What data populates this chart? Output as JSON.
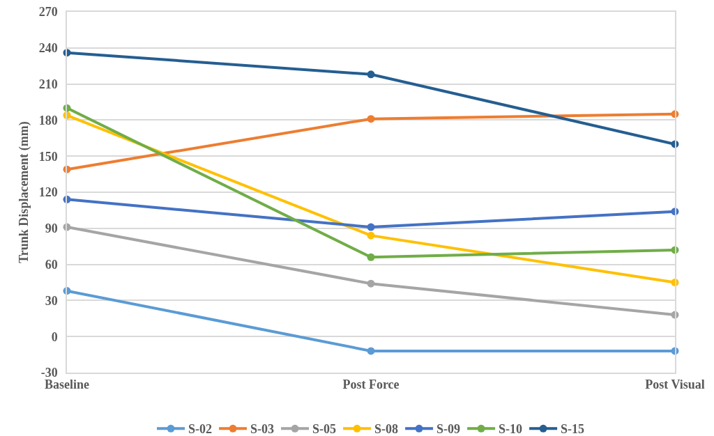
{
  "chart_data": {
    "type": "line",
    "ylabel": "Trunk Displacement (mm)",
    "categories": [
      "Baseline",
      "Post Force",
      "Post Visual"
    ],
    "series": [
      {
        "name": "S-02",
        "color": "#5b9bd5",
        "values": [
          38,
          -12,
          -12
        ]
      },
      {
        "name": "S-03",
        "color": "#ed7d31",
        "values": [
          139,
          181,
          185
        ]
      },
      {
        "name": "S-05",
        "color": "#a5a5a5",
        "values": [
          91,
          44,
          18
        ]
      },
      {
        "name": "S-08",
        "color": "#ffc000",
        "values": [
          184,
          84,
          45
        ]
      },
      {
        "name": "S-09",
        "color": "#4472c4",
        "values": [
          114,
          91,
          104
        ]
      },
      {
        "name": "S-10",
        "color": "#70ad47",
        "values": [
          190,
          66,
          72
        ]
      },
      {
        "name": "S-15",
        "color": "#255e91",
        "values": [
          236,
          218,
          160
        ]
      }
    ],
    "ylim": [
      -30,
      270
    ],
    "yticks": [
      -30,
      0,
      30,
      60,
      90,
      120,
      150,
      180,
      210,
      240,
      270
    ],
    "grid": "y",
    "legend": "bottom",
    "marker": "circle",
    "line_style": "solid"
  }
}
